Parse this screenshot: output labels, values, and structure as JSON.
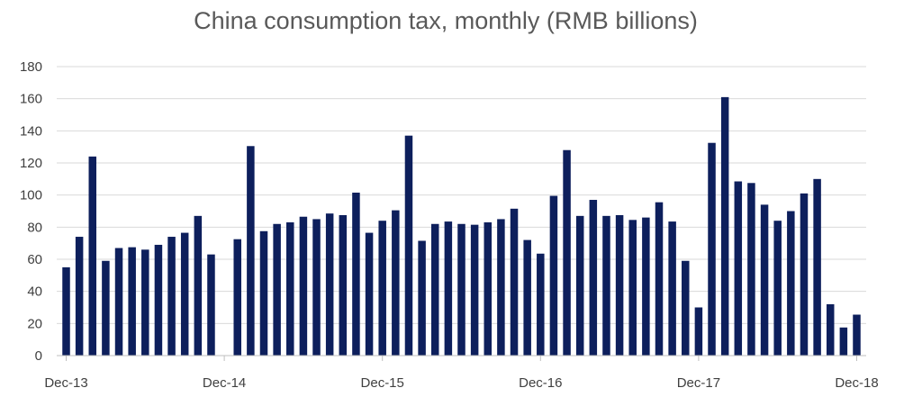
{
  "chart_data": {
    "type": "bar",
    "title": "China consumption tax, monthly (RMB billions)",
    "xlabel": "",
    "ylabel": "",
    "ylim": [
      0,
      180
    ],
    "yticks": [
      0,
      20,
      40,
      60,
      80,
      100,
      120,
      140,
      160,
      180
    ],
    "grid": true,
    "legend": "none",
    "bar_color": "#0d1f5c",
    "grid_color": "#d9d9d9",
    "xtick_labels": [
      "Dec-13",
      "Dec-14",
      "Dec-15",
      "Dec-16",
      "Dec-17",
      "Dec-18"
    ],
    "categories": [
      "Dec-13",
      "Jan-14",
      "Feb-14",
      "Mar-14",
      "Apr-14",
      "May-14",
      "Jun-14",
      "Jul-14",
      "Aug-14",
      "Sep-14",
      "Oct-14",
      "Nov-14",
      "Dec-14",
      "Jan-15",
      "Feb-15",
      "Mar-15",
      "Apr-15",
      "May-15",
      "Jun-15",
      "Jul-15",
      "Aug-15",
      "Sep-15",
      "Oct-15",
      "Nov-15",
      "Dec-15",
      "Jan-16",
      "Feb-16",
      "Mar-16",
      "Apr-16",
      "May-16",
      "Jun-16",
      "Jul-16",
      "Aug-16",
      "Sep-16",
      "Oct-16",
      "Nov-16",
      "Dec-16",
      "Jan-17",
      "Feb-17",
      "Mar-17",
      "Apr-17",
      "May-17",
      "Jun-17",
      "Jul-17",
      "Aug-17",
      "Sep-17",
      "Oct-17",
      "Nov-17",
      "Dec-17",
      "Jan-18",
      "Feb-18",
      "Mar-18",
      "Apr-18",
      "May-18",
      "Jun-18",
      "Jul-18",
      "Aug-18",
      "Sep-18",
      "Oct-18",
      "Nov-18",
      "Dec-18"
    ],
    "values": [
      55,
      74,
      124,
      59,
      67,
      67.5,
      66,
      69,
      74,
      76.5,
      87,
      63,
      null,
      72.5,
      130.5,
      77.5,
      82,
      83,
      86.5,
      85,
      88.5,
      87.5,
      101.5,
      76.5,
      84,
      90.5,
      137,
      71.5,
      82,
      83.5,
      82,
      81.5,
      83,
      85,
      91.5,
      72,
      63.5,
      99.5,
      128,
      87,
      97,
      87,
      87.5,
      84.5,
      86,
      95.5,
      83.5,
      59,
      30,
      132.5,
      161,
      108.5,
      107.5,
      94,
      84,
      90,
      101,
      110,
      32,
      17.5,
      25.5
    ]
  }
}
